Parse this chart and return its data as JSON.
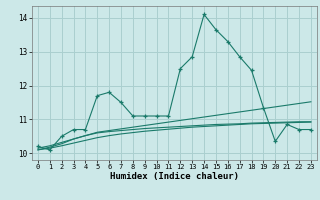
{
  "x": [
    0,
    1,
    2,
    3,
    4,
    5,
    6,
    7,
    8,
    9,
    10,
    11,
    12,
    13,
    14,
    15,
    16,
    17,
    18,
    19,
    20,
    21,
    22,
    23
  ],
  "y_main": [
    10.2,
    10.1,
    10.5,
    10.7,
    10.7,
    11.7,
    11.8,
    11.5,
    11.1,
    11.1,
    11.1,
    11.1,
    12.5,
    12.85,
    14.1,
    13.65,
    13.3,
    12.85,
    12.45,
    11.35,
    10.35,
    10.85,
    10.7,
    10.7
  ],
  "y_trend1": [
    10.15,
    10.22,
    10.32,
    10.42,
    10.52,
    10.62,
    10.67,
    10.72,
    10.77,
    10.82,
    10.87,
    10.92,
    10.97,
    11.02,
    11.07,
    11.12,
    11.17,
    11.22,
    11.27,
    11.32,
    11.37,
    11.42,
    11.47,
    11.52
  ],
  "y_trend2": [
    10.1,
    10.15,
    10.22,
    10.3,
    10.38,
    10.46,
    10.52,
    10.57,
    10.61,
    10.65,
    10.68,
    10.71,
    10.74,
    10.77,
    10.79,
    10.81,
    10.83,
    10.85,
    10.87,
    10.88,
    10.89,
    10.9,
    10.91,
    10.92
  ],
  "y_trend3": [
    10.1,
    10.18,
    10.28,
    10.42,
    10.52,
    10.6,
    10.64,
    10.67,
    10.7,
    10.73,
    10.75,
    10.77,
    10.79,
    10.81,
    10.83,
    10.85,
    10.86,
    10.87,
    10.89,
    10.9,
    10.91,
    10.92,
    10.93,
    10.93
  ],
  "line_color": "#1a7a6a",
  "bg_color": "#cce8e8",
  "grid_color": "#aacfcf",
  "xlabel": "Humidex (Indice chaleur)",
  "ylim": [
    9.8,
    14.35
  ],
  "xlim": [
    -0.5,
    23.5
  ],
  "yticks": [
    10,
    11,
    12,
    13,
    14
  ],
  "xticks": [
    0,
    1,
    2,
    3,
    4,
    5,
    6,
    7,
    8,
    9,
    10,
    11,
    12,
    13,
    14,
    15,
    16,
    17,
    18,
    19,
    20,
    21,
    22,
    23
  ]
}
